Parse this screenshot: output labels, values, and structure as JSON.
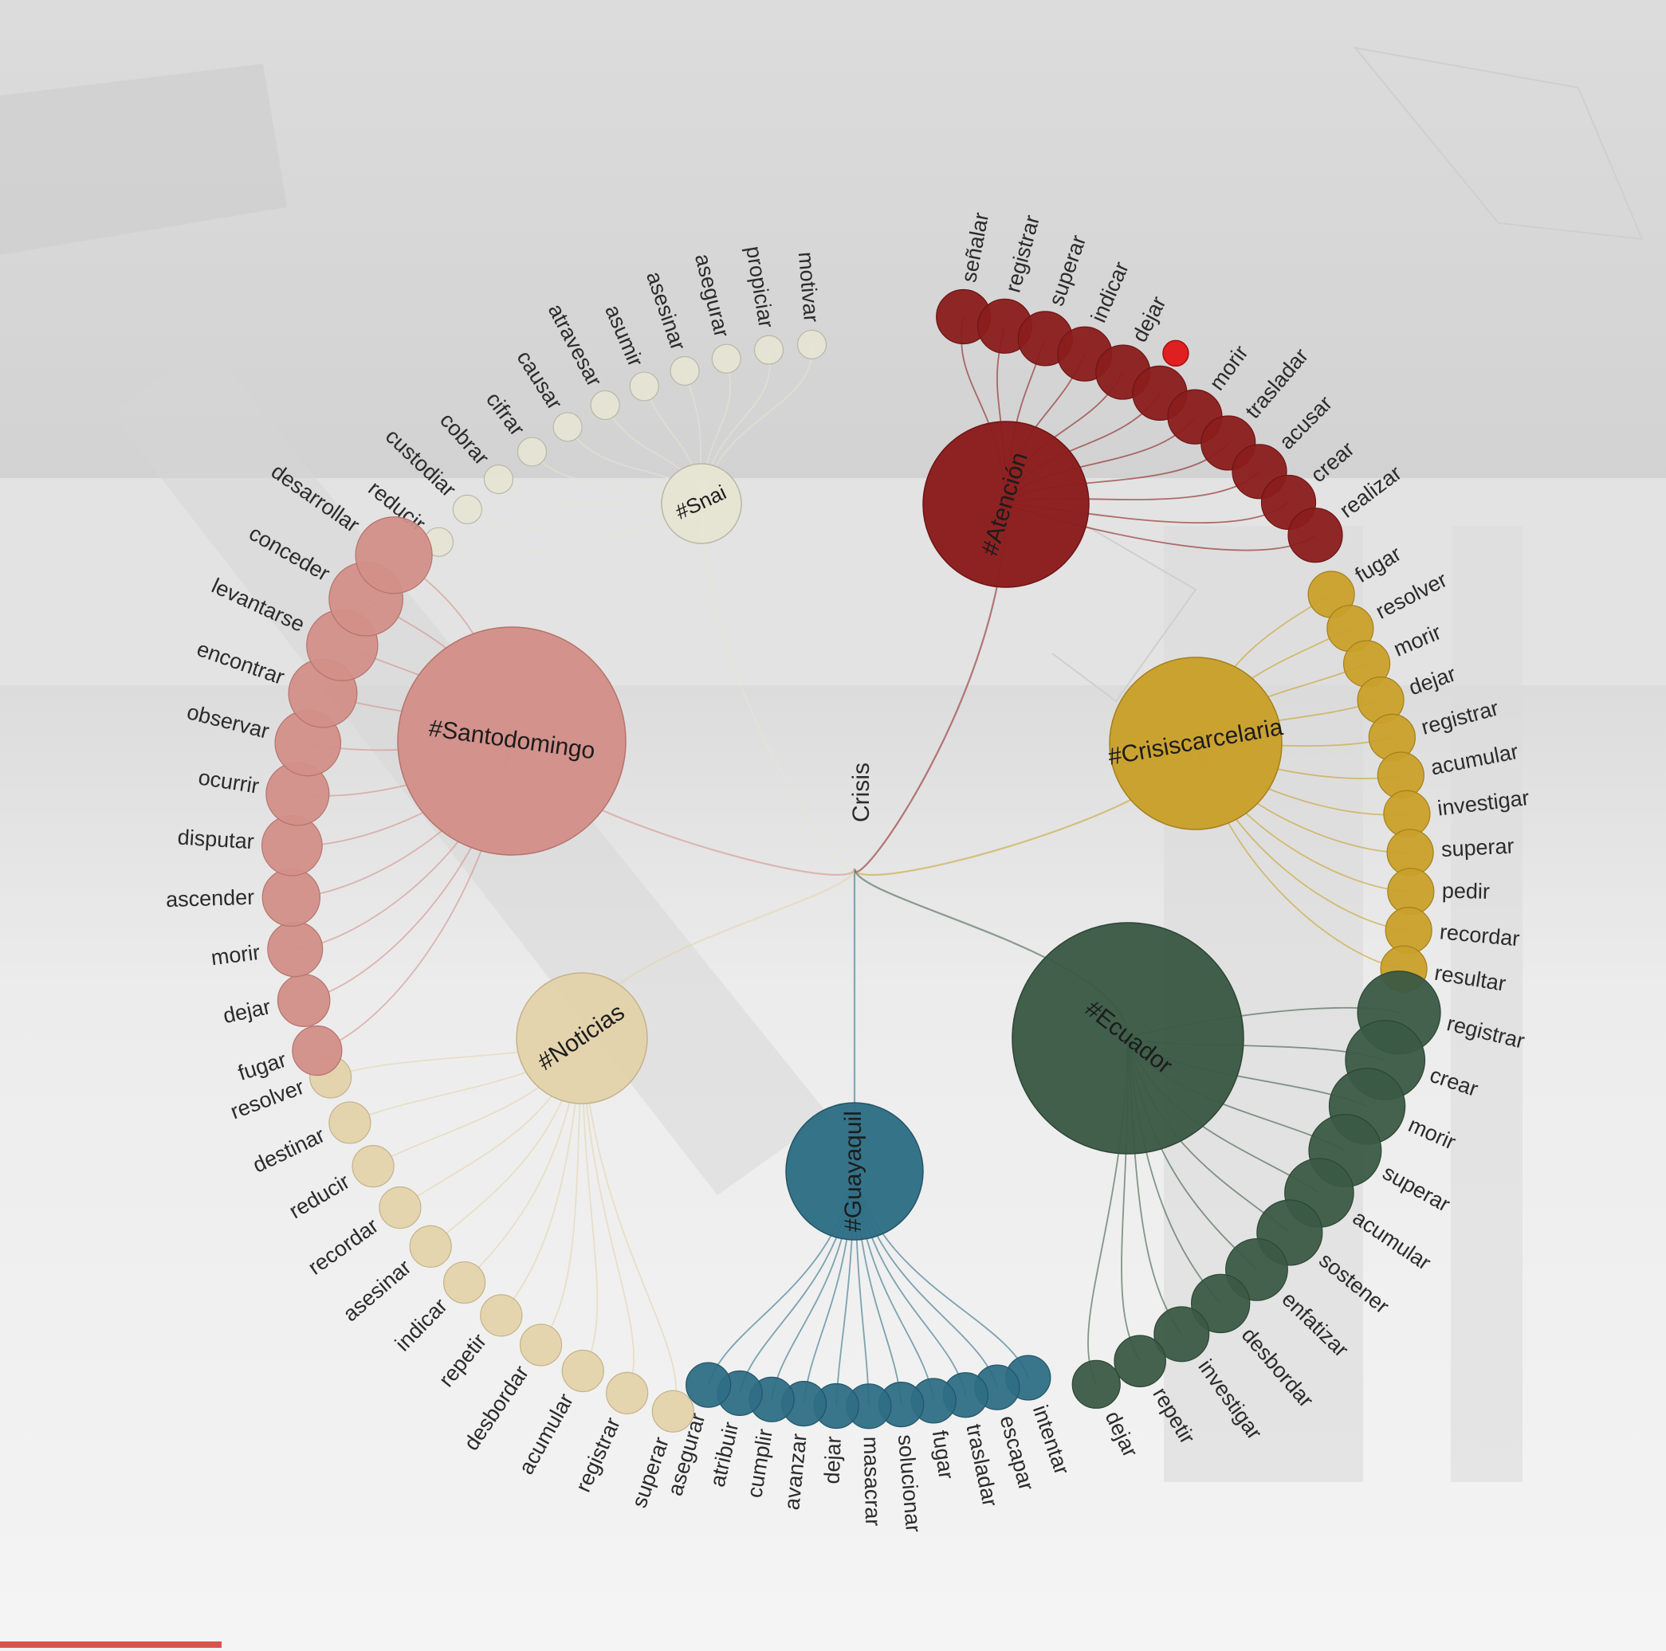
{
  "root": {
    "label": "Crisis"
  },
  "groups": [
    {
      "id": "snai",
      "label": "#Snai",
      "color": "#e6e5d4",
      "stroke": "#b8b7a8",
      "labelColor": "#222222",
      "leaves": [
        "motivar",
        "propiciar",
        "asegurar",
        "asesinar",
        "asumir",
        "atravesar",
        "causar",
        "cifrar",
        "cobrar",
        "custodiar",
        "reducir"
      ]
    },
    {
      "id": "atencion",
      "label": "#Atención",
      "color": "#8b1c1c",
      "stroke": "#6e1414",
      "labelColor": "#1a1a1a",
      "leaves": [
        "señalar",
        "registrar",
        "superar",
        "indicar",
        "dejar",
        "",
        "morir",
        "trasladar",
        "acusar",
        "crear",
        "realizar"
      ]
    },
    {
      "id": "crisiscarcelaria",
      "label": "#Crisiscarcelaria",
      "color": "#c9a02a",
      "stroke": "#a3801d",
      "labelColor": "#1a1a1a",
      "leaves": [
        "fugar",
        "resolver",
        "morir",
        "dejar",
        "registrar",
        "acumular",
        "investigar",
        "superar",
        "pedir",
        "recordar",
        "resultar"
      ]
    },
    {
      "id": "ecuador",
      "label": "#Ecuador",
      "color": "#3b5a45",
      "stroke": "#2c4634",
      "labelColor": "#111111",
      "leaves": [
        "registrar",
        "crear",
        "morir",
        "superar",
        "acumular",
        "sostener",
        "enfatizar",
        "desbordar",
        "investigar",
        "repetir",
        "dejar"
      ]
    },
    {
      "id": "guayaquil",
      "label": "#Guayaquil",
      "color": "#2e6e85",
      "stroke": "#225568",
      "labelColor": "#111111",
      "leaves": [
        "intentar",
        "escapar",
        "trasladar",
        "fugar",
        "solucionar",
        "masacrar",
        "dejar",
        "avanzar",
        "cumplir",
        "atribuir",
        "asegurar"
      ]
    },
    {
      "id": "noticias",
      "label": "#Noticias",
      "color": "#e3d3ab",
      "stroke": "#c4b38a",
      "labelColor": "#1a1a1a",
      "leaves": [
        "superar",
        "registrar",
        "acumular",
        "desbordar",
        "repetir",
        "indicar",
        "asesinar",
        "recordar",
        "reducir",
        "destinar",
        "resolver"
      ]
    },
    {
      "id": "santodomingo",
      "label": "#Santodomingo",
      "color": "#d38f89",
      "stroke": "#b6736d",
      "labelColor": "#1a1a1a",
      "leaves": [
        "fugar",
        "dejar",
        "morir",
        "ascender",
        "disputar",
        "ocurrir",
        "observar",
        "encontrar",
        "levantarse",
        "conceder",
        "desarrollar"
      ]
    }
  ],
  "highlight": {
    "color": "#e02020"
  }
}
